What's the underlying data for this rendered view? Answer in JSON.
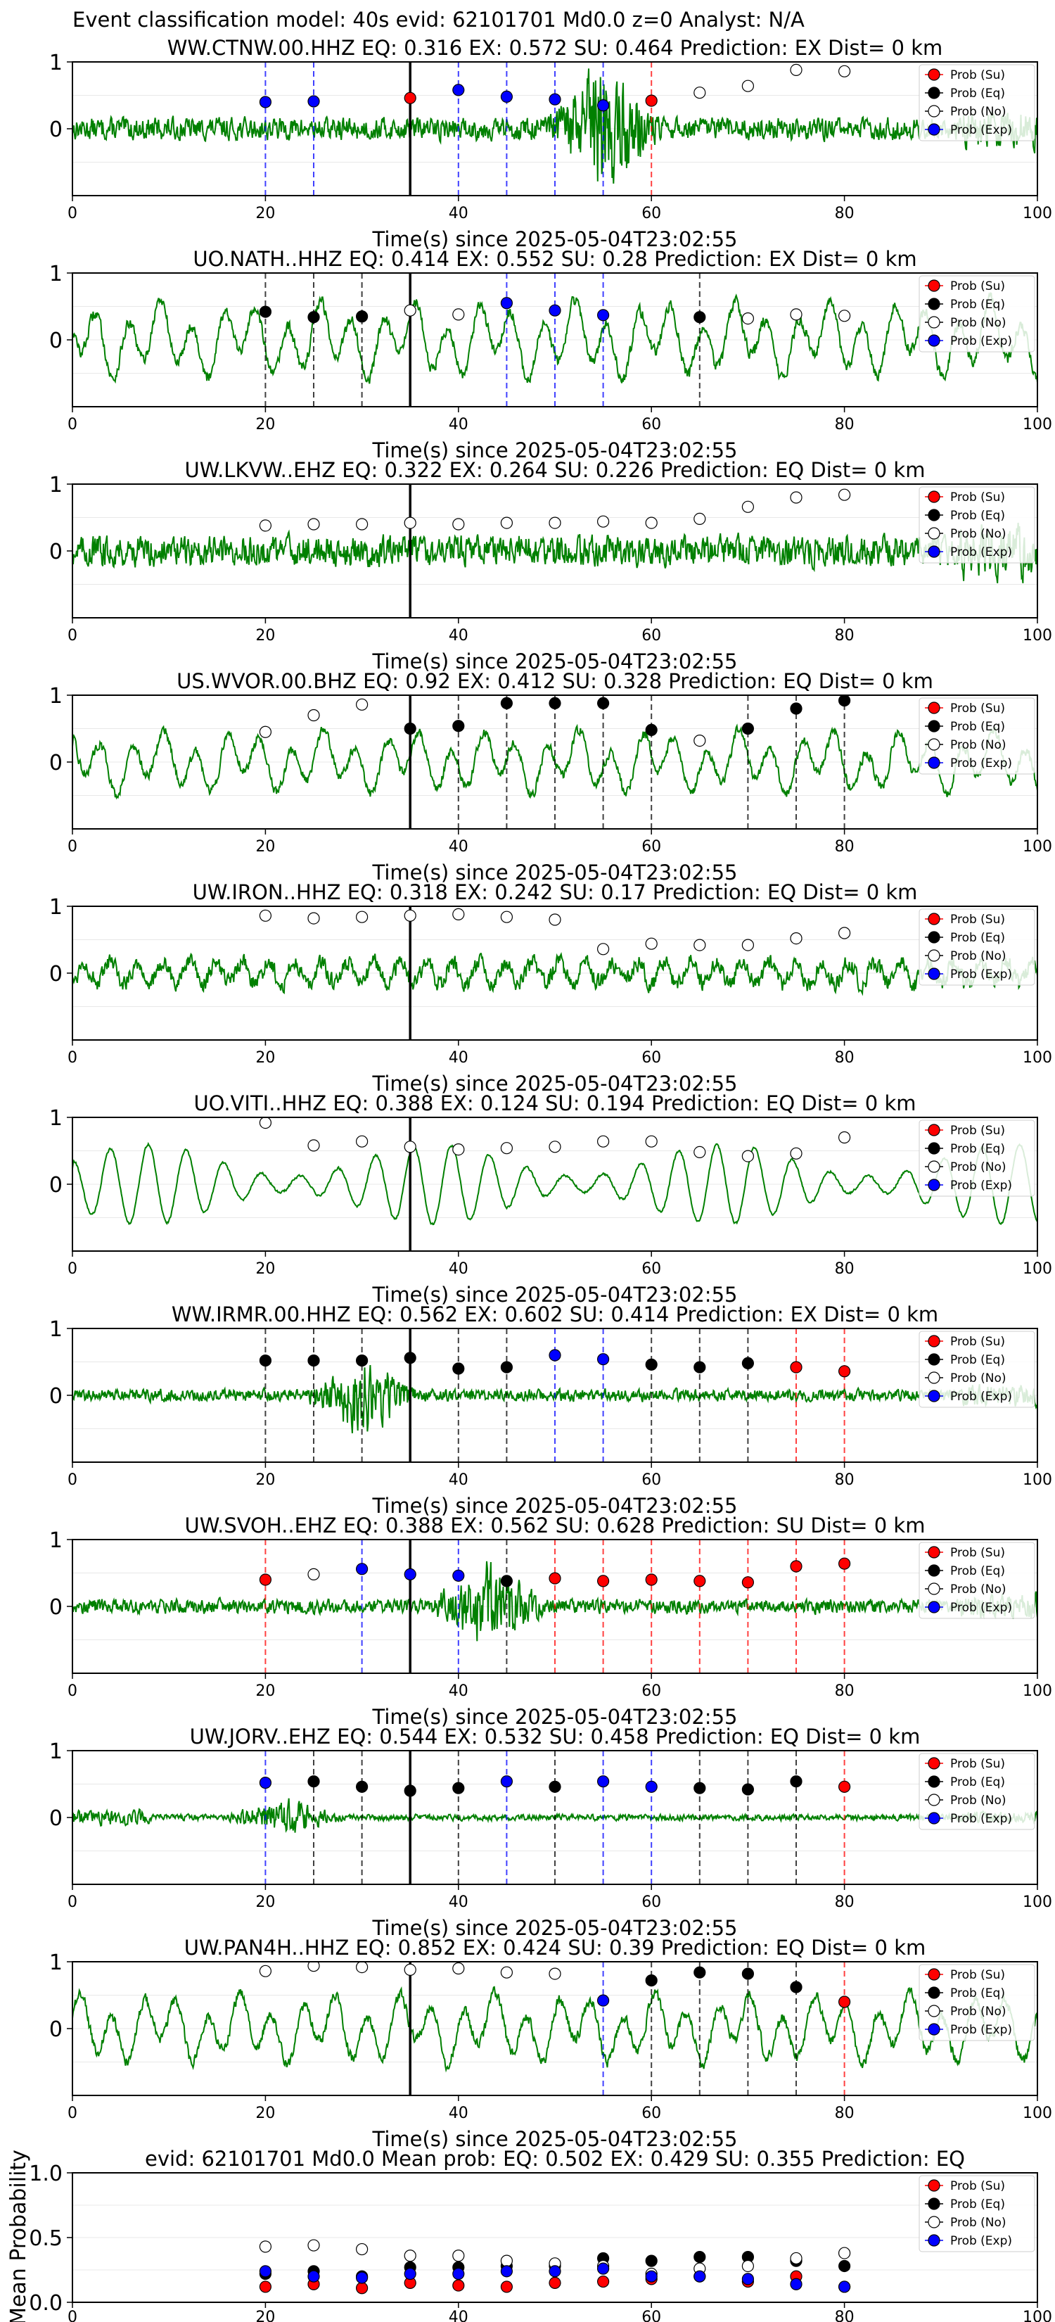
{
  "header": {
    "title": "Event classification model: 40s evid: 62101701 Md0.0 z=0 Analyst: N/A"
  },
  "legend_labels": [
    "Prob (Su)",
    "Prob (Eq)",
    "Prob (No)",
    "Prob (Exp)"
  ],
  "colors": {
    "Su": "#ff0000",
    "Eq": "#000000",
    "No": "#ffffff",
    "Exp": "#0000ff",
    "trace": "#008000"
  },
  "chart_data": [
    {
      "type": "line",
      "title": "WW.CTNW.00.HHZ   EQ: 0.316  EX: 0.572  SU: 0.464   Prediction: EX    Dist= 0 km",
      "xlabel": "Time(s) since 2025-05-04T23:02:55",
      "xlim": [
        0,
        100
      ],
      "ylim": [
        -1,
        1
      ],
      "xticks": [
        0,
        20,
        40,
        60,
        80,
        100
      ],
      "yticks": [
        1,
        0
      ],
      "pick_time": 35,
      "trace": {
        "amp": 0.22,
        "style": "noise",
        "burst_at": 55
      },
      "points": [
        {
          "x": 20,
          "cls": "Exp",
          "p": 0.4
        },
        {
          "x": 25,
          "cls": "Exp",
          "p": 0.41
        },
        {
          "x": 35,
          "cls": "Su",
          "p": 0.46
        },
        {
          "x": 40,
          "cls": "Exp",
          "p": 0.58
        },
        {
          "x": 45,
          "cls": "Exp",
          "p": 0.48
        },
        {
          "x": 50,
          "cls": "Exp",
          "p": 0.44
        },
        {
          "x": 55,
          "cls": "Exp",
          "p": 0.35
        },
        {
          "x": 60,
          "cls": "Su",
          "p": 0.42
        },
        {
          "x": 65,
          "cls": "No",
          "p": 0.54
        },
        {
          "x": 70,
          "cls": "No",
          "p": 0.64
        },
        {
          "x": 75,
          "cls": "No",
          "p": 0.88
        },
        {
          "x": 80,
          "cls": "No",
          "p": 0.86
        }
      ]
    },
    {
      "type": "line",
      "title": "UO.NATH..HHZ   EQ: 0.414  EX: 0.552  SU: 0.28   Prediction: EX    Dist= 0 km",
      "xlabel": "Time(s) since 2025-05-04T23:02:55",
      "xlim": [
        0,
        100
      ],
      "ylim": [
        -1,
        1
      ],
      "xticks": [
        0,
        20,
        40,
        60,
        80,
        100
      ],
      "yticks": [
        1,
        0
      ],
      "pick_time": 35,
      "trace": {
        "amp": 0.55,
        "style": "wave"
      },
      "points": [
        {
          "x": 20,
          "cls": "Eq",
          "p": 0.42
        },
        {
          "x": 25,
          "cls": "Eq",
          "p": 0.34
        },
        {
          "x": 30,
          "cls": "Eq",
          "p": 0.35
        },
        {
          "x": 35,
          "cls": "No",
          "p": 0.44
        },
        {
          "x": 40,
          "cls": "No",
          "p": 0.38
        },
        {
          "x": 45,
          "cls": "Exp",
          "p": 0.55
        },
        {
          "x": 50,
          "cls": "Exp",
          "p": 0.44
        },
        {
          "x": 55,
          "cls": "Exp",
          "p": 0.37
        },
        {
          "x": 65,
          "cls": "Eq",
          "p": 0.34
        },
        {
          "x": 70,
          "cls": "No",
          "p": 0.32
        },
        {
          "x": 75,
          "cls": "No",
          "p": 0.38
        },
        {
          "x": 80,
          "cls": "No",
          "p": 0.36
        }
      ]
    },
    {
      "type": "line",
      "title": "UW.LKVW..EHZ   EQ: 0.322  EX: 0.264  SU: 0.226   Prediction: EQ    Dist= 0 km",
      "xlabel": "Time(s) since 2025-05-04T23:02:55",
      "xlim": [
        0,
        100
      ],
      "ylim": [
        -1,
        1
      ],
      "xticks": [
        0,
        20,
        40,
        60,
        80,
        100
      ],
      "yticks": [
        1,
        0
      ],
      "pick_time": 35,
      "trace": {
        "amp": 0.3,
        "style": "noise"
      },
      "points": [
        {
          "x": 20,
          "cls": "No",
          "p": 0.38
        },
        {
          "x": 25,
          "cls": "No",
          "p": 0.4
        },
        {
          "x": 30,
          "cls": "No",
          "p": 0.4
        },
        {
          "x": 35,
          "cls": "No",
          "p": 0.42
        },
        {
          "x": 40,
          "cls": "No",
          "p": 0.4
        },
        {
          "x": 45,
          "cls": "No",
          "p": 0.42
        },
        {
          "x": 50,
          "cls": "No",
          "p": 0.42
        },
        {
          "x": 55,
          "cls": "No",
          "p": 0.44
        },
        {
          "x": 60,
          "cls": "No",
          "p": 0.42
        },
        {
          "x": 65,
          "cls": "No",
          "p": 0.48
        },
        {
          "x": 70,
          "cls": "No",
          "p": 0.66
        },
        {
          "x": 75,
          "cls": "No",
          "p": 0.8
        },
        {
          "x": 80,
          "cls": "No",
          "p": 0.84
        }
      ]
    },
    {
      "type": "line",
      "title": "US.WVOR.00.BHZ   EQ: 0.92  EX: 0.412  SU: 0.328   Prediction: EQ    Dist= 0 km",
      "xlabel": "Time(s) since 2025-05-04T23:02:55",
      "xlim": [
        0,
        100
      ],
      "ylim": [
        -1,
        1
      ],
      "xticks": [
        0,
        20,
        40,
        60,
        80,
        100
      ],
      "yticks": [
        1,
        0
      ],
      "pick_time": 35,
      "trace": {
        "amp": 0.45,
        "style": "wave"
      },
      "points": [
        {
          "x": 20,
          "cls": "No",
          "p": 0.45
        },
        {
          "x": 25,
          "cls": "No",
          "p": 0.7
        },
        {
          "x": 30,
          "cls": "No",
          "p": 0.86
        },
        {
          "x": 35,
          "cls": "Eq",
          "p": 0.5
        },
        {
          "x": 40,
          "cls": "Eq",
          "p": 0.54
        },
        {
          "x": 45,
          "cls": "Eq",
          "p": 0.88
        },
        {
          "x": 50,
          "cls": "Eq",
          "p": 0.88
        },
        {
          "x": 55,
          "cls": "Eq",
          "p": 0.88
        },
        {
          "x": 60,
          "cls": "Eq",
          "p": 0.48
        },
        {
          "x": 65,
          "cls": "No",
          "p": 0.32
        },
        {
          "x": 70,
          "cls": "Eq",
          "p": 0.5
        },
        {
          "x": 75,
          "cls": "Eq",
          "p": 0.8
        },
        {
          "x": 80,
          "cls": "Eq",
          "p": 0.92
        }
      ]
    },
    {
      "type": "line",
      "title": "UW.IRON..HHZ   EQ: 0.318  EX: 0.242  SU: 0.17   Prediction: EQ    Dist= 0 km",
      "xlabel": "Time(s) since 2025-05-04T23:02:55",
      "xlim": [
        0,
        100
      ],
      "ylim": [
        -1,
        1
      ],
      "xticks": [
        0,
        20,
        40,
        60,
        80,
        100
      ],
      "yticks": [
        1,
        0
      ],
      "pick_time": 35,
      "trace": {
        "amp": 0.32,
        "style": "mixed"
      },
      "points": [
        {
          "x": 20,
          "cls": "No",
          "p": 0.86
        },
        {
          "x": 25,
          "cls": "No",
          "p": 0.82
        },
        {
          "x": 30,
          "cls": "No",
          "p": 0.84
        },
        {
          "x": 35,
          "cls": "No",
          "p": 0.86
        },
        {
          "x": 40,
          "cls": "No",
          "p": 0.88
        },
        {
          "x": 45,
          "cls": "No",
          "p": 0.84
        },
        {
          "x": 50,
          "cls": "No",
          "p": 0.8
        },
        {
          "x": 55,
          "cls": "No",
          "p": 0.36
        },
        {
          "x": 60,
          "cls": "No",
          "p": 0.44
        },
        {
          "x": 65,
          "cls": "No",
          "p": 0.42
        },
        {
          "x": 70,
          "cls": "No",
          "p": 0.42
        },
        {
          "x": 75,
          "cls": "No",
          "p": 0.52
        },
        {
          "x": 80,
          "cls": "No",
          "p": 0.6
        }
      ]
    },
    {
      "type": "line",
      "title": "UO.VITI..HHZ   EQ: 0.388  EX: 0.124  SU: 0.194   Prediction: EQ    Dist= 0 km",
      "xlabel": "Time(s) since 2025-05-04T23:02:55",
      "xlim": [
        0,
        100
      ],
      "ylim": [
        -1,
        1
      ],
      "xticks": [
        0,
        20,
        40,
        60,
        80,
        100
      ],
      "yticks": [
        1,
        0
      ],
      "pick_time": 35,
      "trace": {
        "amp": 0.6,
        "style": "smooth"
      },
      "points": [
        {
          "x": 20,
          "cls": "No",
          "p": 0.92
        },
        {
          "x": 25,
          "cls": "No",
          "p": 0.58
        },
        {
          "x": 30,
          "cls": "No",
          "p": 0.64
        },
        {
          "x": 35,
          "cls": "No",
          "p": 0.56
        },
        {
          "x": 40,
          "cls": "No",
          "p": 0.52
        },
        {
          "x": 45,
          "cls": "No",
          "p": 0.54
        },
        {
          "x": 50,
          "cls": "No",
          "p": 0.56
        },
        {
          "x": 55,
          "cls": "No",
          "p": 0.64
        },
        {
          "x": 60,
          "cls": "No",
          "p": 0.64
        },
        {
          "x": 65,
          "cls": "No",
          "p": 0.48
        },
        {
          "x": 70,
          "cls": "No",
          "p": 0.42
        },
        {
          "x": 75,
          "cls": "No",
          "p": 0.46
        },
        {
          "x": 80,
          "cls": "No",
          "p": 0.7
        }
      ]
    },
    {
      "type": "line",
      "title": "WW.IRMR.00.HHZ   EQ: 0.562  EX: 0.602  SU: 0.414   Prediction: EX    Dist= 0 km",
      "xlabel": "Time(s) since 2025-05-04T23:02:55",
      "xlim": [
        0,
        100
      ],
      "ylim": [
        -1,
        1
      ],
      "xticks": [
        0,
        20,
        40,
        60,
        80,
        100
      ],
      "yticks": [
        1,
        0
      ],
      "pick_time": 35,
      "trace": {
        "amp": 0.12,
        "style": "noise",
        "burst_at": 30
      },
      "points": [
        {
          "x": 20,
          "cls": "Eq",
          "p": 0.52
        },
        {
          "x": 25,
          "cls": "Eq",
          "p": 0.52
        },
        {
          "x": 30,
          "cls": "Eq",
          "p": 0.52
        },
        {
          "x": 35,
          "cls": "Eq",
          "p": 0.56
        },
        {
          "x": 40,
          "cls": "Eq",
          "p": 0.4
        },
        {
          "x": 45,
          "cls": "Eq",
          "p": 0.42
        },
        {
          "x": 50,
          "cls": "Exp",
          "p": 0.6
        },
        {
          "x": 55,
          "cls": "Exp",
          "p": 0.54
        },
        {
          "x": 60,
          "cls": "Eq",
          "p": 0.46
        },
        {
          "x": 65,
          "cls": "Eq",
          "p": 0.42
        },
        {
          "x": 70,
          "cls": "Eq",
          "p": 0.48
        },
        {
          "x": 75,
          "cls": "Su",
          "p": 0.42
        },
        {
          "x": 80,
          "cls": "Su",
          "p": 0.36
        }
      ]
    },
    {
      "type": "line",
      "title": "UW.SVOH..EHZ   EQ: 0.388  EX: 0.562  SU: 0.628   Prediction: SU    Dist= 0 km",
      "xlabel": "Time(s) since 2025-05-04T23:02:55",
      "xlim": [
        0,
        100
      ],
      "ylim": [
        -1,
        1
      ],
      "xticks": [
        0,
        20,
        40,
        60,
        80,
        100
      ],
      "yticks": [
        1,
        0
      ],
      "pick_time": 35,
      "trace": {
        "amp": 0.14,
        "style": "noise",
        "burst_at": 43
      },
      "points": [
        {
          "x": 20,
          "cls": "Su",
          "p": 0.4
        },
        {
          "x": 25,
          "cls": "No",
          "p": 0.48
        },
        {
          "x": 30,
          "cls": "Exp",
          "p": 0.56
        },
        {
          "x": 35,
          "cls": "Exp",
          "p": 0.48
        },
        {
          "x": 40,
          "cls": "Exp",
          "p": 0.46
        },
        {
          "x": 45,
          "cls": "Eq",
          "p": 0.38
        },
        {
          "x": 50,
          "cls": "Su",
          "p": 0.42
        },
        {
          "x": 55,
          "cls": "Su",
          "p": 0.38
        },
        {
          "x": 60,
          "cls": "Su",
          "p": 0.4
        },
        {
          "x": 65,
          "cls": "Su",
          "p": 0.38
        },
        {
          "x": 70,
          "cls": "Su",
          "p": 0.36
        },
        {
          "x": 75,
          "cls": "Su",
          "p": 0.6
        },
        {
          "x": 80,
          "cls": "Su",
          "p": 0.64
        }
      ]
    },
    {
      "type": "line",
      "title": "UW.JORV..EHZ   EQ: 0.544  EX: 0.532  SU: 0.458   Prediction: EQ    Dist= 0 km",
      "xlabel": "Time(s) since 2025-05-04T23:02:55",
      "xlim": [
        0,
        100
      ],
      "ylim": [
        -1,
        1
      ],
      "xticks": [
        0,
        20,
        40,
        60,
        80,
        100
      ],
      "yticks": [
        1,
        0
      ],
      "pick_time": 35,
      "trace": {
        "amp": 0.06,
        "style": "noise",
        "burst_at": 22,
        "early_burst": true
      },
      "points": [
        {
          "x": 20,
          "cls": "Exp",
          "p": 0.52
        },
        {
          "x": 25,
          "cls": "Eq",
          "p": 0.54
        },
        {
          "x": 30,
          "cls": "Eq",
          "p": 0.46
        },
        {
          "x": 35,
          "cls": "Eq",
          "p": 0.4
        },
        {
          "x": 40,
          "cls": "Eq",
          "p": 0.44
        },
        {
          "x": 45,
          "cls": "Exp",
          "p": 0.54
        },
        {
          "x": 50,
          "cls": "Eq",
          "p": 0.46
        },
        {
          "x": 55,
          "cls": "Exp",
          "p": 0.54
        },
        {
          "x": 60,
          "cls": "Exp",
          "p": 0.46
        },
        {
          "x": 65,
          "cls": "Eq",
          "p": 0.44
        },
        {
          "x": 70,
          "cls": "Eq",
          "p": 0.42
        },
        {
          "x": 75,
          "cls": "Eq",
          "p": 0.54
        },
        {
          "x": 80,
          "cls": "Su",
          "p": 0.46
        }
      ]
    },
    {
      "type": "line",
      "title": "UW.PAN4H..HHZ   EQ: 0.852  EX: 0.424  SU: 0.39   Prediction: EQ    Dist= 0 km",
      "xlabel": "Time(s) since 2025-05-04T23:02:55",
      "xlim": [
        0,
        100
      ],
      "ylim": [
        -1,
        1
      ],
      "xticks": [
        0,
        20,
        40,
        60,
        80,
        100
      ],
      "yticks": [
        1,
        0
      ],
      "pick_time": 35,
      "trace": {
        "amp": 0.5,
        "style": "wave"
      },
      "points": [
        {
          "x": 20,
          "cls": "No",
          "p": 0.86
        },
        {
          "x": 25,
          "cls": "No",
          "p": 0.94
        },
        {
          "x": 30,
          "cls": "No",
          "p": 0.92
        },
        {
          "x": 35,
          "cls": "No",
          "p": 0.88
        },
        {
          "x": 40,
          "cls": "No",
          "p": 0.9
        },
        {
          "x": 45,
          "cls": "No",
          "p": 0.84
        },
        {
          "x": 50,
          "cls": "No",
          "p": 0.82
        },
        {
          "x": 55,
          "cls": "Exp",
          "p": 0.42
        },
        {
          "x": 60,
          "cls": "Eq",
          "p": 0.72
        },
        {
          "x": 65,
          "cls": "Eq",
          "p": 0.84
        },
        {
          "x": 70,
          "cls": "Eq",
          "p": 0.82
        },
        {
          "x": 75,
          "cls": "Eq",
          "p": 0.62
        },
        {
          "x": 80,
          "cls": "Su",
          "p": 0.4
        }
      ]
    },
    {
      "type": "scatter",
      "title": "evid: 62101701  Md0.0   Mean prob:   EQ: 0.502  EX: 0.429  SU: 0.355   Prediction: EQ",
      "ylabel": "Mean Probability",
      "xlim": [
        0,
        100
      ],
      "ylim": [
        0,
        1
      ],
      "xticks": [
        0,
        20,
        40,
        60,
        80,
        100
      ],
      "yticks": [
        1.0,
        0.5,
        0.0
      ],
      "ytick_labels": [
        "1.0",
        "0.5",
        "0.0"
      ],
      "x": [
        20,
        25,
        30,
        35,
        40,
        45,
        50,
        55,
        60,
        65,
        70,
        75,
        80
      ],
      "series": [
        {
          "name": "Prob (Su)",
          "cls": "Su",
          "values": [
            0.12,
            0.14,
            0.11,
            0.15,
            0.13,
            0.12,
            0.15,
            0.16,
            0.18,
            0.2,
            0.16,
            0.2,
            0.12
          ]
        },
        {
          "name": "Prob (Eq)",
          "cls": "Eq",
          "values": [
            0.22,
            0.24,
            0.2,
            0.27,
            0.27,
            0.28,
            0.28,
            0.34,
            0.32,
            0.35,
            0.35,
            0.32,
            0.28
          ]
        },
        {
          "name": "Prob (No)",
          "cls": "No",
          "values": [
            0.43,
            0.44,
            0.41,
            0.36,
            0.36,
            0.32,
            0.3,
            0.28,
            0.22,
            0.26,
            0.28,
            0.34,
            0.38
          ]
        },
        {
          "name": "Prob (Exp)",
          "cls": "Exp",
          "values": [
            0.24,
            0.2,
            0.19,
            0.22,
            0.22,
            0.24,
            0.24,
            0.26,
            0.2,
            0.2,
            0.18,
            0.14,
            0.12
          ]
        }
      ]
    }
  ]
}
